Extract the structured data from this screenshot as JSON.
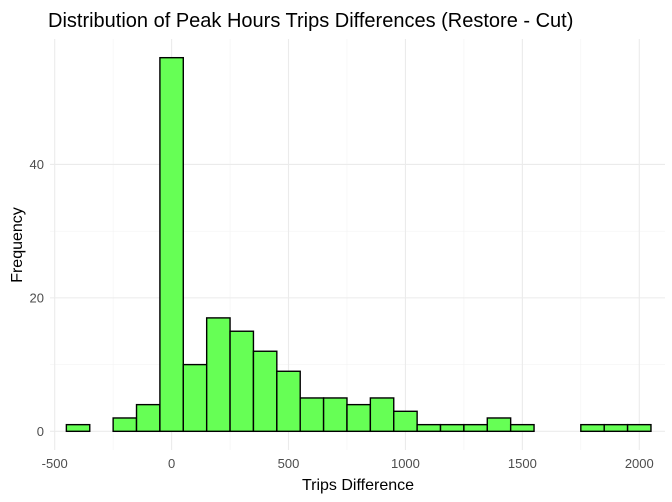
{
  "chart_data": {
    "type": "bar",
    "title": "Distribution of Peak Hours Trips Differences (Restore - Cut)",
    "xlabel": "Trips Difference",
    "ylabel": "Frequency",
    "binwidth": 100,
    "bin_centers": [
      -400,
      -300,
      -200,
      -100,
      0,
      100,
      200,
      300,
      400,
      500,
      600,
      700,
      800,
      900,
      1000,
      1100,
      1200,
      1300,
      1400,
      1500,
      1600,
      1700,
      1800,
      1900,
      2000
    ],
    "values": [
      1,
      0,
      2,
      4,
      56,
      10,
      17,
      15,
      12,
      9,
      5,
      5,
      4,
      5,
      3,
      1,
      1,
      1,
      2,
      1,
      0,
      0,
      1,
      1,
      1
    ],
    "xlim": [
      -520,
      2110
    ],
    "ylim": [
      -2.8,
      58.8
    ],
    "x_ticks": [
      -500,
      0,
      500,
      1000,
      1500,
      2000
    ],
    "x_tick_labels": [
      "-500",
      "0",
      "500",
      "1000",
      "1500",
      "2000"
    ],
    "y_ticks": [
      0,
      20,
      40
    ],
    "y_tick_labels": [
      "0",
      "20",
      "40"
    ],
    "grid": true,
    "fill_color": "#66ff55",
    "outline_color": "#000000"
  }
}
